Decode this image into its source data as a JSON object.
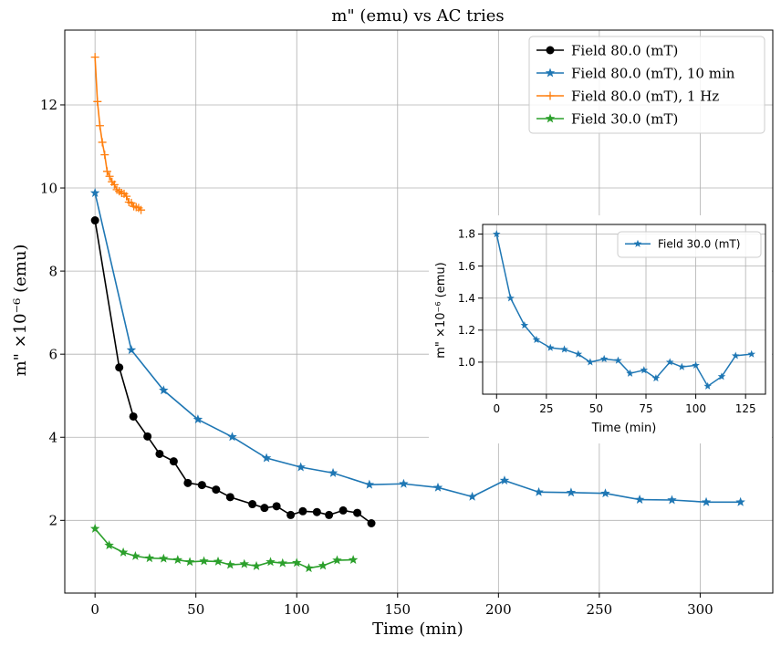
{
  "chart_data": [
    {
      "type": "line",
      "title": "m\" (emu) vs  AC tries",
      "xlabel": "Time (min)",
      "ylabel": "m\" ×10⁻⁶ (emu)",
      "xlim": [
        -15,
        336
      ],
      "ylim": [
        0.25,
        13.8
      ],
      "xticks": [
        0,
        50,
        100,
        150,
        200,
        250,
        300
      ],
      "yticks": [
        2,
        4,
        6,
        8,
        10,
        12
      ],
      "grid": true,
      "legend_position": "top-right",
      "series": [
        {
          "name": "Field 80.0 (mT)",
          "color": "#000000",
          "marker": "circle",
          "x": [
            0,
            12,
            19,
            26,
            32,
            39,
            46,
            53,
            60,
            67,
            78,
            84,
            90,
            97,
            103,
            110,
            116,
            123,
            130,
            137
          ],
          "y": [
            9.22,
            5.68,
            4.5,
            4.02,
            3.6,
            3.42,
            2.9,
            2.85,
            2.74,
            2.56,
            2.39,
            2.3,
            2.34,
            2.13,
            2.22,
            2.2,
            2.13,
            2.24,
            2.18,
            1.93
          ]
        },
        {
          "name": "Field 80.0 (mT), 10 min",
          "color": "#1f77b4",
          "marker": "star",
          "x": [
            0,
            18,
            34,
            51,
            68,
            85,
            102,
            118,
            136,
            153,
            170,
            187,
            203,
            220,
            236,
            253,
            270,
            286,
            303,
            320
          ],
          "y": [
            9.88,
            6.1,
            5.13,
            4.43,
            4.01,
            3.5,
            3.28,
            3.14,
            2.86,
            2.88,
            2.79,
            2.57,
            2.96,
            2.68,
            2.67,
            2.65,
            2.5,
            2.49,
            2.44,
            2.44
          ]
        },
        {
          "name": "Field 80.0 (mT), 1 Hz",
          "color": "#ff7f0e",
          "marker": "plus",
          "x": [
            0,
            1.2,
            2.4,
            3.6,
            4.8,
            6,
            7.2,
            8.4,
            9.6,
            10.8,
            12,
            13.2,
            14.4,
            15.6,
            16.8,
            18,
            19.2,
            20.4,
            21.6,
            22.8
          ],
          "y": [
            13.15,
            12.08,
            11.5,
            11.1,
            10.8,
            10.4,
            10.28,
            10.15,
            10.08,
            9.96,
            9.92,
            9.88,
            9.86,
            9.8,
            9.66,
            9.64,
            9.56,
            9.54,
            9.52,
            9.47
          ]
        },
        {
          "name": "Field 30.0 (mT)",
          "color": "#2ca02c",
          "marker": "star",
          "x": [
            0,
            7,
            14,
            20,
            27,
            34,
            41,
            47,
            54,
            61,
            67,
            74,
            80,
            87,
            93,
            100,
            106,
            113,
            120,
            128
          ],
          "y": [
            1.8,
            1.4,
            1.23,
            1.14,
            1.09,
            1.08,
            1.05,
            1.0,
            1.02,
            1.01,
            0.93,
            0.95,
            0.9,
            1.0,
            0.97,
            0.98,
            0.85,
            0.91,
            1.04,
            1.05
          ]
        }
      ]
    },
    {
      "type": "line",
      "title": "",
      "xlabel": "Time (min)",
      "ylabel": "m\" ×10⁻⁶ (emu)",
      "xlim": [
        -7,
        135
      ],
      "ylim": [
        0.8,
        1.86
      ],
      "xticks": [
        0,
        25,
        50,
        75,
        100,
        125
      ],
      "yticks": [
        1.0,
        1.2,
        1.4,
        1.6,
        1.8
      ],
      "grid": true,
      "legend_position": "top-right",
      "series": [
        {
          "name": "Field 30.0 (mT)",
          "color": "#1f77b4",
          "marker": "star",
          "x": [
            0,
            7,
            14,
            20,
            27,
            34,
            41,
            47,
            54,
            61,
            67,
            74,
            80,
            87,
            93,
            100,
            106,
            113,
            120,
            128
          ],
          "y": [
            1.8,
            1.4,
            1.23,
            1.14,
            1.09,
            1.08,
            1.05,
            1.0,
            1.02,
            1.01,
            0.93,
            0.95,
            0.9,
            1.0,
            0.97,
            0.98,
            0.85,
            0.91,
            1.04,
            1.05
          ]
        }
      ]
    }
  ]
}
